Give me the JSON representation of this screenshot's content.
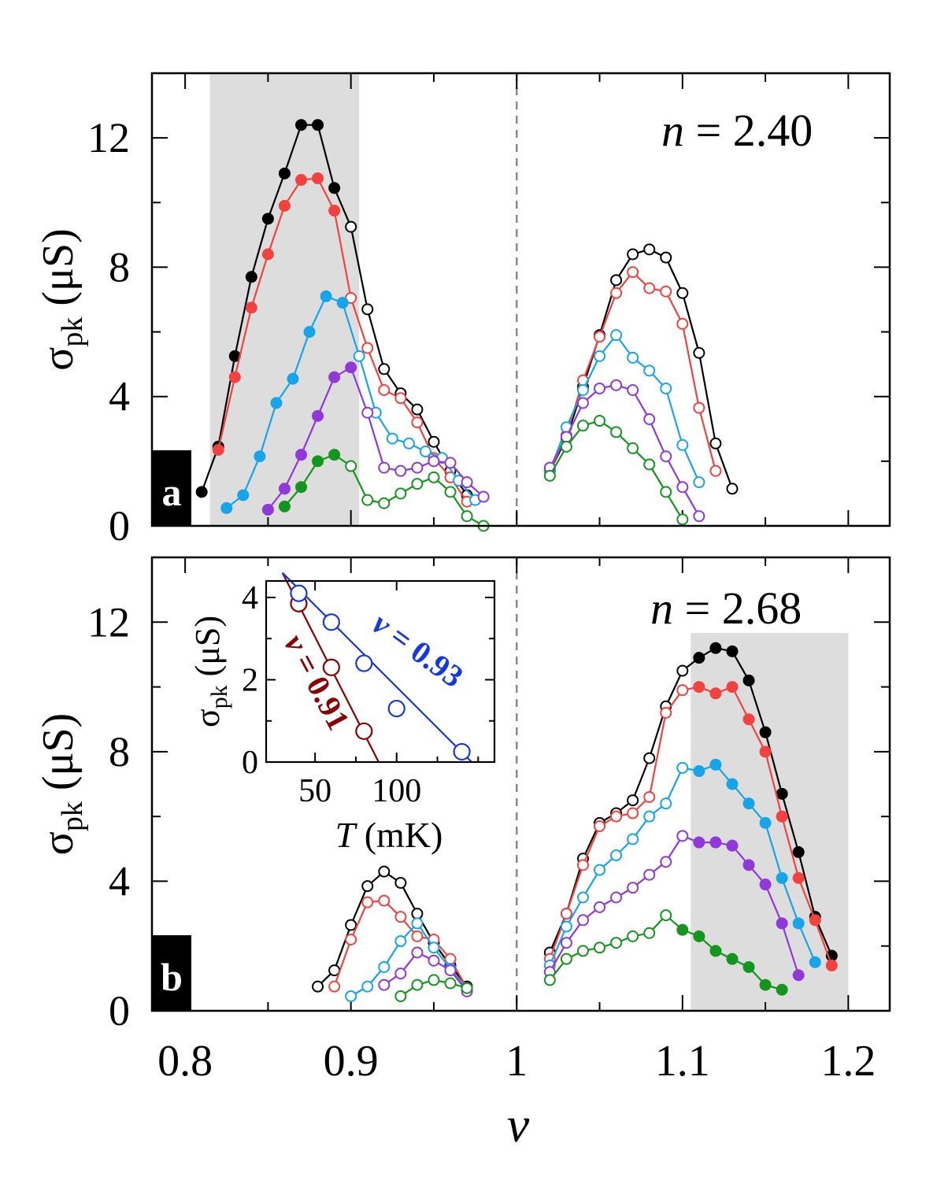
{
  "colors": {
    "black": "#000000",
    "red": "#f0433f",
    "blue": "#16a5e8",
    "purple": "#9038d8",
    "green": "#14951d",
    "shade": "#dddddd",
    "dashed": "#8a8a8a",
    "inset_darkred": "#8b0000",
    "inset_blue": "#1538e6"
  },
  "axes": {
    "xlabel": "ν",
    "ylabel_main": "σ",
    "ylabel_sub": "pk",
    "ylabel_unit": " (μS)",
    "xlim": [
      0.78,
      1.225
    ],
    "ylim": [
      0,
      14
    ],
    "xticks": [
      0.8,
      0.9,
      1.0,
      1.1,
      1.2
    ],
    "xtick_labels": [
      "0.8",
      "0.9",
      "1",
      "1.1",
      "1.2"
    ],
    "yticks": [
      0,
      4,
      8,
      12
    ],
    "ytick_labels": [
      "0",
      "4",
      "8",
      "12"
    ]
  },
  "chart_data": [
    {
      "panel": "a",
      "type": "line",
      "annotation_var": "n",
      "annotation_text": " = 2.40",
      "shade_x": [
        0.815,
        0.905
      ],
      "divider_x": 1.0,
      "series": [
        {
          "name": "black",
          "color": "black",
          "x": [
            0.81,
            0.82,
            0.83,
            0.84,
            0.85,
            0.86,
            0.87,
            0.88,
            0.89,
            0.9,
            0.91,
            0.92,
            0.93,
            0.94,
            0.95,
            0.96,
            0.97
          ],
          "y": [
            1.05,
            2.45,
            5.25,
            7.7,
            9.5,
            10.9,
            12.4,
            12.4,
            10.45,
            9.25,
            6.7,
            4.85,
            4.1,
            3.6,
            2.6,
            1.7,
            0.95
          ],
          "filled": [
            1,
            1,
            1,
            1,
            1,
            1,
            1,
            1,
            1,
            0,
            0,
            0,
            0,
            0,
            0,
            0,
            0
          ]
        },
        {
          "name": "red",
          "color": "red",
          "x": [
            0.82,
            0.83,
            0.84,
            0.85,
            0.86,
            0.87,
            0.88,
            0.89,
            0.9,
            0.91,
            0.92,
            0.93,
            0.94,
            0.95,
            0.96,
            0.97
          ],
          "y": [
            2.35,
            4.6,
            6.75,
            8.4,
            9.9,
            10.7,
            10.75,
            9.75,
            7.05,
            5.5,
            4.2,
            3.95,
            3.2,
            2.1,
            1.5,
            0.75
          ],
          "filled": [
            1,
            1,
            1,
            1,
            1,
            1,
            1,
            1,
            0,
            0,
            0,
            0,
            0,
            0,
            0,
            0
          ]
        },
        {
          "name": "blue",
          "color": "blue",
          "x": [
            0.825,
            0.835,
            0.845,
            0.855,
            0.865,
            0.875,
            0.885,
            0.895,
            0.905,
            0.915,
            0.925,
            0.935,
            0.945,
            0.955,
            0.965,
            0.975
          ],
          "y": [
            0.55,
            0.95,
            2.15,
            3.8,
            4.55,
            6.0,
            7.1,
            6.9,
            5.25,
            3.5,
            2.7,
            2.55,
            2.3,
            2.1,
            1.4,
            0.8
          ],
          "filled": [
            1,
            1,
            1,
            1,
            1,
            1,
            1,
            1,
            0,
            0,
            0,
            0,
            0,
            0,
            0,
            0
          ]
        },
        {
          "name": "purple",
          "color": "purple",
          "x": [
            0.85,
            0.86,
            0.87,
            0.88,
            0.89,
            0.9,
            0.91,
            0.92,
            0.93,
            0.94,
            0.95,
            0.96,
            0.97,
            0.98
          ],
          "y": [
            0.5,
            1.15,
            2.2,
            3.4,
            4.6,
            4.9,
            3.5,
            1.8,
            1.7,
            1.8,
            2.0,
            1.95,
            1.35,
            0.9
          ],
          "filled": [
            1,
            1,
            1,
            1,
            1,
            1,
            0,
            0,
            0,
            0,
            0,
            0,
            0,
            0
          ]
        },
        {
          "name": "green",
          "color": "green",
          "x": [
            0.86,
            0.87,
            0.88,
            0.89,
            0.9,
            0.91,
            0.92,
            0.93,
            0.94,
            0.95,
            0.96,
            0.97,
            0.98
          ],
          "y": [
            0.6,
            1.2,
            2.0,
            2.2,
            1.85,
            0.8,
            0.7,
            1.0,
            1.3,
            1.5,
            1.05,
            0.3,
            0.0
          ],
          "filled": [
            1,
            1,
            1,
            1,
            0,
            0,
            0,
            0,
            0,
            0,
            0,
            0,
            0
          ]
        },
        {
          "name": "black-r",
          "color": "black",
          "x": [
            1.02,
            1.03,
            1.04,
            1.05,
            1.06,
            1.07,
            1.08,
            1.09,
            1.1,
            1.11,
            1.12,
            1.13
          ],
          "y": [
            1.7,
            2.7,
            4.3,
            5.9,
            7.6,
            8.4,
            8.55,
            8.3,
            7.2,
            5.35,
            2.55,
            1.15
          ],
          "filled": [
            0,
            0,
            0,
            0,
            0,
            0,
            0,
            0,
            0,
            0,
            0,
            0
          ]
        },
        {
          "name": "red-r",
          "color": "red",
          "x": [
            1.02,
            1.03,
            1.04,
            1.05,
            1.06,
            1.07,
            1.08,
            1.09,
            1.1,
            1.11,
            1.12
          ],
          "y": [
            1.7,
            2.8,
            4.5,
            5.85,
            7.2,
            7.85,
            7.35,
            7.25,
            6.25,
            3.65,
            1.7
          ],
          "filled": [
            0,
            0,
            0,
            0,
            0,
            0,
            0,
            0,
            0,
            0,
            0
          ]
        },
        {
          "name": "blue-r",
          "color": "blue",
          "x": [
            1.02,
            1.03,
            1.04,
            1.05,
            1.06,
            1.07,
            1.08,
            1.09,
            1.1,
            1.11
          ],
          "y": [
            1.7,
            3.05,
            4.2,
            5.25,
            5.9,
            5.2,
            4.8,
            4.25,
            2.5,
            1.35
          ],
          "filled": [
            0,
            0,
            0,
            0,
            0,
            0,
            0,
            0,
            0,
            0
          ]
        },
        {
          "name": "purple-r",
          "color": "purple",
          "x": [
            1.02,
            1.03,
            1.04,
            1.05,
            1.06,
            1.07,
            1.08,
            1.09,
            1.1,
            1.11
          ],
          "y": [
            1.8,
            2.75,
            3.8,
            4.25,
            4.35,
            4.2,
            3.3,
            2.15,
            1.2,
            0.3
          ],
          "filled": [
            0,
            0,
            0,
            0,
            0,
            0,
            0,
            0,
            0,
            0
          ]
        },
        {
          "name": "green-r",
          "color": "green",
          "x": [
            1.02,
            1.03,
            1.04,
            1.05,
            1.06,
            1.07,
            1.08,
            1.09,
            1.1
          ],
          "y": [
            1.55,
            2.45,
            3.1,
            3.25,
            2.9,
            2.4,
            1.9,
            1.05,
            0.2
          ],
          "filled": [
            0,
            0,
            0,
            0,
            0,
            0,
            0,
            0,
            0
          ]
        }
      ]
    },
    {
      "panel": "b",
      "type": "line",
      "annotation_var": "n",
      "annotation_text": " = 2.68",
      "shade_x": [
        1.105,
        1.2
      ],
      "divider_x": 1.0,
      "series": [
        {
          "name": "black-l",
          "color": "black",
          "x": [
            0.88,
            0.89,
            0.9,
            0.91,
            0.92,
            0.93,
            0.94,
            0.95,
            0.96,
            0.97
          ],
          "y": [
            0.75,
            1.25,
            2.65,
            3.85,
            4.3,
            3.95,
            3.0,
            2.1,
            1.4,
            0.75
          ],
          "filled": [
            0,
            0,
            0,
            0,
            0,
            0,
            0,
            0,
            0,
            0
          ]
        },
        {
          "name": "red-l",
          "color": "red",
          "x": [
            0.89,
            0.9,
            0.91,
            0.92,
            0.93,
            0.94,
            0.95,
            0.96,
            0.97
          ],
          "y": [
            0.75,
            2.2,
            3.35,
            3.4,
            2.9,
            2.3,
            2.2,
            1.6,
            0.7
          ],
          "filled": [
            0,
            0,
            0,
            0,
            0,
            0,
            0,
            0,
            0
          ]
        },
        {
          "name": "blue-l",
          "color": "blue",
          "x": [
            0.9,
            0.91,
            0.92,
            0.93,
            0.94,
            0.95,
            0.96,
            0.97
          ],
          "y": [
            0.45,
            0.75,
            1.35,
            2.15,
            2.7,
            1.95,
            1.3,
            0.65
          ],
          "filled": [
            0,
            0,
            0,
            0,
            0,
            0,
            0,
            0
          ]
        },
        {
          "name": "purple-l",
          "color": "purple",
          "x": [
            0.92,
            0.93,
            0.94,
            0.95,
            0.96,
            0.97
          ],
          "y": [
            0.8,
            1.15,
            1.8,
            1.55,
            1.25,
            0.6
          ],
          "filled": [
            0,
            0,
            0,
            0,
            0,
            0
          ]
        },
        {
          "name": "green-l",
          "color": "green",
          "x": [
            0.93,
            0.94,
            0.95,
            0.96,
            0.97
          ],
          "y": [
            0.45,
            0.8,
            0.95,
            0.85,
            0.7
          ],
          "filled": [
            0,
            0,
            0,
            0,
            0
          ]
        },
        {
          "name": "black-r",
          "color": "black",
          "x": [
            1.02,
            1.03,
            1.04,
            1.05,
            1.06,
            1.07,
            1.08,
            1.09,
            1.1,
            1.11,
            1.12,
            1.13,
            1.14,
            1.15,
            1.16,
            1.17,
            1.18,
            1.19
          ],
          "y": [
            1.8,
            3.0,
            4.7,
            5.8,
            6.1,
            6.5,
            7.8,
            9.4,
            10.5,
            10.9,
            11.2,
            11.1,
            10.2,
            8.6,
            6.7,
            4.9,
            2.9,
            1.7
          ],
          "filled": [
            0,
            0,
            0,
            0,
            0,
            0,
            0,
            0,
            0,
            1,
            1,
            1,
            1,
            1,
            1,
            1,
            1,
            1
          ]
        },
        {
          "name": "red-r",
          "color": "red",
          "x": [
            1.02,
            1.03,
            1.04,
            1.05,
            1.06,
            1.07,
            1.08,
            1.09,
            1.1,
            1.11,
            1.12,
            1.13,
            1.14,
            1.15,
            1.16,
            1.17,
            1.18,
            1.19
          ],
          "y": [
            1.6,
            3.0,
            4.5,
            5.7,
            6.0,
            6.1,
            6.6,
            9.2,
            9.9,
            10.0,
            9.8,
            10.0,
            9.0,
            8.0,
            6.0,
            4.1,
            2.8,
            1.4
          ],
          "filled": [
            0,
            0,
            0,
            0,
            0,
            0,
            0,
            0,
            0,
            1,
            1,
            1,
            1,
            1,
            1,
            1,
            1,
            1
          ]
        },
        {
          "name": "blue-r",
          "color": "blue",
          "x": [
            1.02,
            1.03,
            1.04,
            1.05,
            1.06,
            1.07,
            1.08,
            1.09,
            1.1,
            1.11,
            1.12,
            1.13,
            1.14,
            1.15,
            1.16,
            1.17,
            1.18
          ],
          "y": [
            1.4,
            2.6,
            3.5,
            4.35,
            4.8,
            5.3,
            6.0,
            6.4,
            7.5,
            7.4,
            7.6,
            7.0,
            6.4,
            5.8,
            4.1,
            2.7,
            1.5
          ],
          "filled": [
            0,
            0,
            0,
            0,
            0,
            0,
            0,
            0,
            0,
            1,
            1,
            1,
            1,
            1,
            1,
            1,
            1
          ]
        },
        {
          "name": "purple-r",
          "color": "purple",
          "x": [
            1.02,
            1.03,
            1.04,
            1.05,
            1.06,
            1.07,
            1.08,
            1.09,
            1.1,
            1.11,
            1.12,
            1.13,
            1.14,
            1.15,
            1.16,
            1.17
          ],
          "y": [
            1.2,
            2.1,
            2.8,
            3.2,
            3.5,
            3.8,
            4.2,
            4.6,
            5.4,
            5.2,
            5.2,
            5.1,
            4.5,
            3.9,
            2.7,
            1.1
          ],
          "filled": [
            0,
            0,
            0,
            0,
            0,
            0,
            0,
            0,
            0,
            1,
            1,
            1,
            1,
            1,
            1,
            1
          ]
        },
        {
          "name": "green-r",
          "color": "green",
          "x": [
            1.02,
            1.03,
            1.04,
            1.05,
            1.06,
            1.07,
            1.08,
            1.09,
            1.1,
            1.11,
            1.12,
            1.13,
            1.14,
            1.15,
            1.16
          ],
          "y": [
            0.95,
            1.6,
            1.85,
            1.95,
            2.1,
            2.3,
            2.4,
            2.95,
            2.5,
            2.3,
            1.85,
            1.6,
            1.35,
            0.8,
            0.65
          ],
          "filled": [
            0,
            0,
            0,
            0,
            0,
            0,
            0,
            0,
            1,
            1,
            1,
            1,
            1,
            1,
            1
          ]
        }
      ]
    },
    {
      "panel": "inset",
      "type": "line",
      "xlabel": "T",
      "xlabel_unit": " (mK)",
      "ylabel_main": "σ",
      "ylabel_sub": "pk",
      "ylabel_unit": " (μS)",
      "xlim": [
        20,
        160
      ],
      "ylim": [
        0,
        4.4
      ],
      "xticks": [
        50,
        100
      ],
      "xtick_labels": [
        "50",
        "100"
      ],
      "yticks": [
        0,
        2,
        4
      ],
      "ytick_labels": [
        "0",
        "2",
        "4"
      ],
      "series": [
        {
          "name": "nu-0.91",
          "label_var": "ν",
          "label_text": " = 0.91",
          "color": "inset_darkred",
          "x": [
            40,
            60,
            80
          ],
          "y": [
            3.85,
            2.3,
            0.75
          ],
          "fit": [
            [
              30,
              4.6
            ],
            [
              89,
              0
            ]
          ]
        },
        {
          "name": "nu-0.93",
          "label_var": "ν",
          "label_text": " = 0.93",
          "color": "inset_blue",
          "x": [
            40,
            60,
            80,
            100,
            140
          ],
          "y": [
            4.1,
            3.4,
            2.4,
            1.3,
            0.25
          ],
          "fit": [
            [
              30,
              4.6
            ],
            [
              146,
              0
            ]
          ]
        }
      ]
    }
  ]
}
